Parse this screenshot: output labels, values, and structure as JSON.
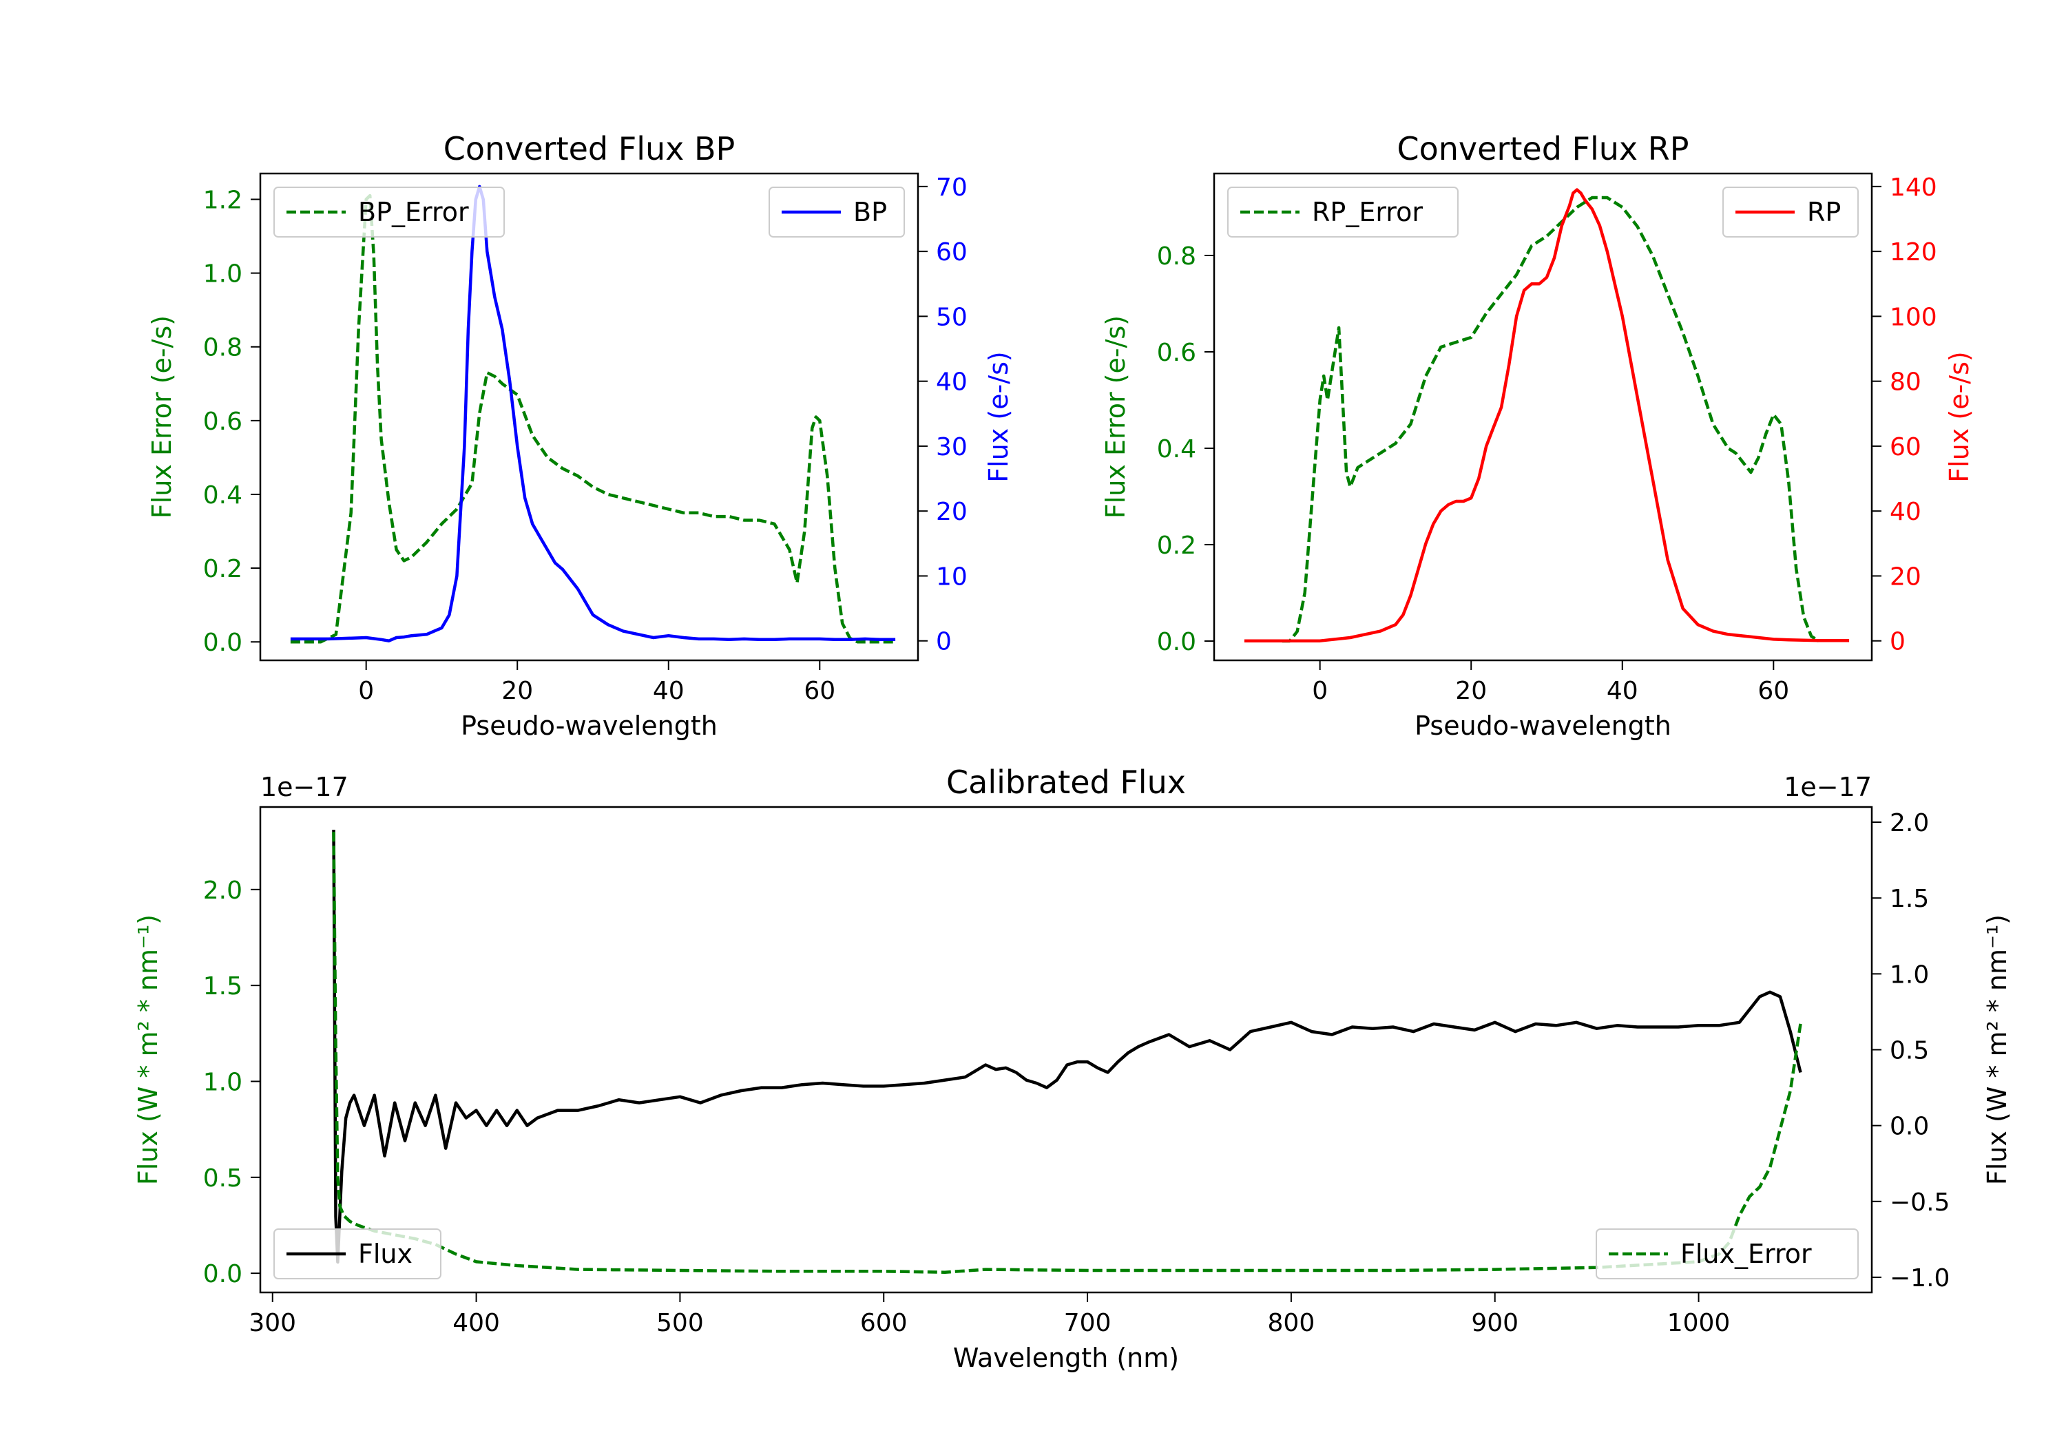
{
  "chart_data": [
    {
      "id": "bp",
      "type": "line",
      "title": "Converted Flux BP",
      "xlabel": "Pseudo-wavelength",
      "xlim": [
        -14,
        73
      ],
      "xticks": [
        0,
        20,
        40,
        60
      ],
      "left_axis": {
        "label": "Flux Error (e-/s)",
        "color": "#008000",
        "ylim": [
          -0.05,
          1.27
        ],
        "ticks": [
          0.0,
          0.2,
          0.4,
          0.6,
          0.8,
          1.0,
          1.2
        ],
        "tick_labels": [
          "0.0",
          "0.2",
          "0.4",
          "0.6",
          "0.8",
          "1.0",
          "1.2"
        ]
      },
      "right_axis": {
        "label": "Flux (e-/s)",
        "color": "#0000ff",
        "ylim": [
          -3,
          72
        ],
        "ticks": [
          0,
          10,
          20,
          30,
          40,
          50,
          60,
          70
        ],
        "tick_labels": [
          "0",
          "10",
          "20",
          "30",
          "40",
          "50",
          "60",
          "70"
        ]
      },
      "series": [
        {
          "name": "BP_Error",
          "axis": "left",
          "color": "#008000",
          "dash": true,
          "x": [
            -10,
            -6,
            -4,
            -2,
            -1,
            0,
            0.5,
            1,
            1.5,
            2,
            3,
            4,
            5,
            6,
            8,
            10,
            12,
            14,
            15,
            16,
            17,
            18,
            20,
            22,
            24,
            26,
            28,
            30,
            32,
            34,
            36,
            38,
            40,
            42,
            44,
            46,
            48,
            50,
            52,
            54,
            56,
            57,
            58,
            59,
            59.5,
            60,
            61,
            62,
            63,
            64,
            65,
            66,
            68,
            70
          ],
          "y": [
            0.0,
            0.0,
            0.02,
            0.35,
            0.85,
            1.2,
            1.21,
            1.05,
            0.75,
            0.55,
            0.38,
            0.25,
            0.22,
            0.23,
            0.27,
            0.32,
            0.36,
            0.43,
            0.62,
            0.73,
            0.72,
            0.7,
            0.67,
            0.56,
            0.5,
            0.47,
            0.45,
            0.42,
            0.4,
            0.39,
            0.38,
            0.37,
            0.36,
            0.35,
            0.35,
            0.34,
            0.34,
            0.33,
            0.33,
            0.32,
            0.25,
            0.16,
            0.3,
            0.58,
            0.61,
            0.6,
            0.45,
            0.2,
            0.05,
            0.01,
            0.0,
            0.0,
            0.0,
            0.0
          ]
        },
        {
          "name": "BP",
          "axis": "right",
          "color": "#0000ff",
          "dash": false,
          "x": [
            -10,
            -5,
            0,
            2,
            3,
            4,
            5,
            6,
            8,
            10,
            11,
            12,
            13,
            13.5,
            14,
            14.5,
            15,
            15.5,
            16,
            17,
            18,
            19,
            20,
            21,
            22,
            23,
            24,
            25,
            26,
            28,
            30,
            32,
            34,
            36,
            38,
            40,
            42,
            44,
            46,
            48,
            50,
            52,
            54,
            56,
            58,
            60,
            62,
            64,
            66,
            68,
            70
          ],
          "y": [
            0.3,
            0.3,
            0.5,
            0.2,
            0.0,
            0.5,
            0.6,
            0.8,
            1.0,
            2,
            4,
            10,
            30,
            48,
            60,
            68,
            70,
            68,
            60,
            53,
            48,
            40,
            30,
            22,
            18,
            16,
            14,
            12,
            11,
            8,
            4,
            2.5,
            1.5,
            1.0,
            0.5,
            0.8,
            0.5,
            0.3,
            0.3,
            0.2,
            0.3,
            0.2,
            0.2,
            0.3,
            0.3,
            0.3,
            0.2,
            0.2,
            0.3,
            0.2,
            0.2
          ]
        }
      ],
      "legends": [
        {
          "series": "BP_Error",
          "label": "BP_Error",
          "placement": "upper-left"
        },
        {
          "series": "BP",
          "label": "BP",
          "placement": "upper-right"
        }
      ]
    },
    {
      "id": "rp",
      "type": "line",
      "title": "Converted Flux RP",
      "xlabel": "Pseudo-wavelength",
      "xlim": [
        -14,
        73
      ],
      "xticks": [
        0,
        20,
        40,
        60
      ],
      "left_axis": {
        "label": "Flux Error (e-/s)",
        "color": "#008000",
        "ylim": [
          -0.04,
          0.97
        ],
        "ticks": [
          0.0,
          0.2,
          0.4,
          0.6,
          0.8
        ],
        "tick_labels": [
          "0.0",
          "0.2",
          "0.4",
          "0.6",
          "0.8"
        ]
      },
      "right_axis": {
        "label": "Flux (e-/s)",
        "color": "#ff0000",
        "ylim": [
          -6,
          144
        ],
        "ticks": [
          0,
          20,
          40,
          60,
          80,
          100,
          120,
          140
        ],
        "tick_labels": [
          "0",
          "20",
          "40",
          "60",
          "80",
          "100",
          "120",
          "140"
        ]
      },
      "series": [
        {
          "name": "RP_Error",
          "axis": "left",
          "color": "#008000",
          "dash": true,
          "x": [
            -5,
            -4,
            -3,
            -2,
            -1,
            0,
            0.5,
            1,
            1.5,
            2,
            2.5,
            3,
            3.5,
            4,
            5,
            6,
            8,
            10,
            12,
            14,
            16,
            18,
            20,
            22,
            24,
            26,
            28,
            30,
            32,
            34,
            36,
            38,
            40,
            42,
            44,
            46,
            48,
            50,
            52,
            54,
            55,
            56,
            57,
            58,
            59,
            60,
            61,
            62,
            63,
            64,
            65,
            66
          ],
          "y": [
            0.0,
            0.0,
            0.02,
            0.1,
            0.3,
            0.5,
            0.55,
            0.5,
            0.55,
            0.6,
            0.65,
            0.5,
            0.35,
            0.32,
            0.36,
            0.37,
            0.39,
            0.41,
            0.45,
            0.55,
            0.61,
            0.62,
            0.63,
            0.68,
            0.72,
            0.76,
            0.82,
            0.84,
            0.87,
            0.9,
            0.92,
            0.92,
            0.9,
            0.86,
            0.8,
            0.72,
            0.64,
            0.55,
            0.45,
            0.4,
            0.39,
            0.37,
            0.35,
            0.38,
            0.43,
            0.47,
            0.45,
            0.33,
            0.15,
            0.05,
            0.01,
            0.0
          ]
        },
        {
          "name": "RP",
          "axis": "right",
          "color": "#ff0000",
          "dash": false,
          "x": [
            -10,
            -5,
            0,
            4,
            6,
            8,
            10,
            11,
            12,
            13,
            14,
            15,
            16,
            17,
            18,
            19,
            20,
            21,
            22,
            23,
            24,
            25,
            26,
            27,
            28,
            29,
            30,
            31,
            32,
            33,
            33.5,
            34,
            34.5,
            35,
            36,
            37,
            38,
            40,
            42,
            44,
            46,
            48,
            50,
            52,
            54,
            56,
            58,
            60,
            62,
            64,
            66,
            70
          ],
          "y": [
            0,
            0,
            0,
            1,
            2,
            3,
            5,
            8,
            14,
            22,
            30,
            36,
            40,
            42,
            43,
            43,
            44,
            50,
            60,
            66,
            72,
            85,
            100,
            108,
            110,
            110,
            112,
            118,
            128,
            134,
            138,
            139,
            138,
            136,
            133,
            128,
            120,
            100,
            75,
            50,
            25,
            10,
            5,
            3,
            2,
            1.5,
            1,
            0.5,
            0.3,
            0.2,
            0.1,
            0.1
          ]
        }
      ],
      "legends": [
        {
          "series": "RP_Error",
          "label": "RP_Error",
          "placement": "upper-left"
        },
        {
          "series": "RP",
          "label": "RP",
          "placement": "upper-right"
        }
      ]
    },
    {
      "id": "cal",
      "type": "line",
      "title": "Calibrated Flux",
      "xlabel": "Wavelength (nm)",
      "xlim": [
        294,
        1085
      ],
      "xticks": [
        300,
        400,
        500,
        600,
        700,
        800,
        900,
        1000
      ],
      "left_axis": {
        "label": "Flux (W * m² * nm⁻¹)",
        "color": "#008000",
        "offset": "1e−17",
        "ylim": [
          -0.1,
          2.43
        ],
        "ticks": [
          0.0,
          0.5,
          1.0,
          1.5,
          2.0
        ],
        "tick_labels": [
          "0.0",
          "0.5",
          "1.0",
          "1.5",
          "2.0"
        ]
      },
      "right_axis": {
        "label": "Flux (W * m² * nm⁻¹)",
        "color": "#000000",
        "offset": "1e−17",
        "ylim": [
          -1.1,
          2.1
        ],
        "ticks": [
          -1.0,
          -0.5,
          0.0,
          0.5,
          1.0,
          1.5,
          2.0
        ],
        "tick_labels": [
          "−1.0",
          "−0.5",
          "0.0",
          "0.5",
          "1.0",
          "1.5",
          "2.0"
        ]
      },
      "series": [
        {
          "name": "Flux",
          "axis": "right",
          "color": "#000000",
          "dash": false,
          "x": [
            330,
            331,
            332,
            334,
            336,
            338,
            340,
            345,
            350,
            355,
            360,
            365,
            370,
            375,
            380,
            385,
            390,
            395,
            400,
            405,
            410,
            415,
            420,
            425,
            430,
            440,
            450,
            460,
            470,
            480,
            490,
            500,
            510,
            520,
            530,
            540,
            550,
            560,
            570,
            580,
            590,
            600,
            610,
            620,
            630,
            640,
            645,
            650,
            655,
            660,
            665,
            670,
            675,
            680,
            685,
            690,
            695,
            700,
            705,
            710,
            715,
            720,
            725,
            730,
            740,
            750,
            760,
            770,
            780,
            790,
            800,
            810,
            820,
            830,
            840,
            850,
            860,
            870,
            880,
            890,
            900,
            910,
            920,
            930,
            940,
            950,
            960,
            970,
            980,
            990,
            1000,
            1010,
            1020,
            1030,
            1035,
            1040,
            1045,
            1050
          ],
          "y": [
            1.95,
            -0.6,
            -0.9,
            -0.3,
            0.05,
            0.15,
            0.2,
            0.0,
            0.2,
            -0.2,
            0.15,
            -0.1,
            0.15,
            0.0,
            0.2,
            -0.15,
            0.15,
            0.05,
            0.1,
            0.0,
            0.1,
            0.0,
            0.1,
            0.0,
            0.05,
            0.1,
            0.1,
            0.13,
            0.17,
            0.15,
            0.17,
            0.19,
            0.15,
            0.2,
            0.23,
            0.25,
            0.25,
            0.27,
            0.28,
            0.27,
            0.26,
            0.26,
            0.27,
            0.28,
            0.3,
            0.32,
            0.36,
            0.4,
            0.37,
            0.38,
            0.35,
            0.3,
            0.28,
            0.25,
            0.3,
            0.4,
            0.42,
            0.42,
            0.38,
            0.35,
            0.42,
            0.48,
            0.52,
            0.55,
            0.6,
            0.52,
            0.56,
            0.5,
            0.62,
            0.65,
            0.68,
            0.62,
            0.6,
            0.65,
            0.64,
            0.65,
            0.62,
            0.67,
            0.65,
            0.63,
            0.68,
            0.62,
            0.67,
            0.66,
            0.68,
            0.64,
            0.66,
            0.65,
            0.65,
            0.65,
            0.66,
            0.66,
            0.68,
            0.85,
            0.88,
            0.85,
            0.62,
            0.35
          ]
        },
        {
          "name": "Flux_Error",
          "axis": "left",
          "color": "#008000",
          "dash": true,
          "x": [
            330,
            331,
            332,
            333,
            335,
            338,
            342,
            350,
            360,
            370,
            380,
            390,
            400,
            420,
            450,
            500,
            550,
            600,
            630,
            650,
            700,
            750,
            800,
            850,
            900,
            950,
            1000,
            1010,
            1015,
            1020,
            1025,
            1030,
            1035,
            1040,
            1045,
            1050
          ],
          "y": [
            2.3,
            1.2,
            0.5,
            0.35,
            0.3,
            0.27,
            0.25,
            0.22,
            0.2,
            0.18,
            0.15,
            0.1,
            0.06,
            0.04,
            0.02,
            0.015,
            0.01,
            0.01,
            0.005,
            0.02,
            0.015,
            0.015,
            0.015,
            0.015,
            0.02,
            0.03,
            0.06,
            0.1,
            0.16,
            0.3,
            0.4,
            0.45,
            0.55,
            0.75,
            0.95,
            1.3
          ]
        }
      ],
      "legends": [
        {
          "series": "Flux",
          "label": "Flux",
          "placement": "lower-left"
        },
        {
          "series": "Flux_Error",
          "label": "Flux_Error",
          "placement": "lower-right"
        }
      ]
    }
  ]
}
